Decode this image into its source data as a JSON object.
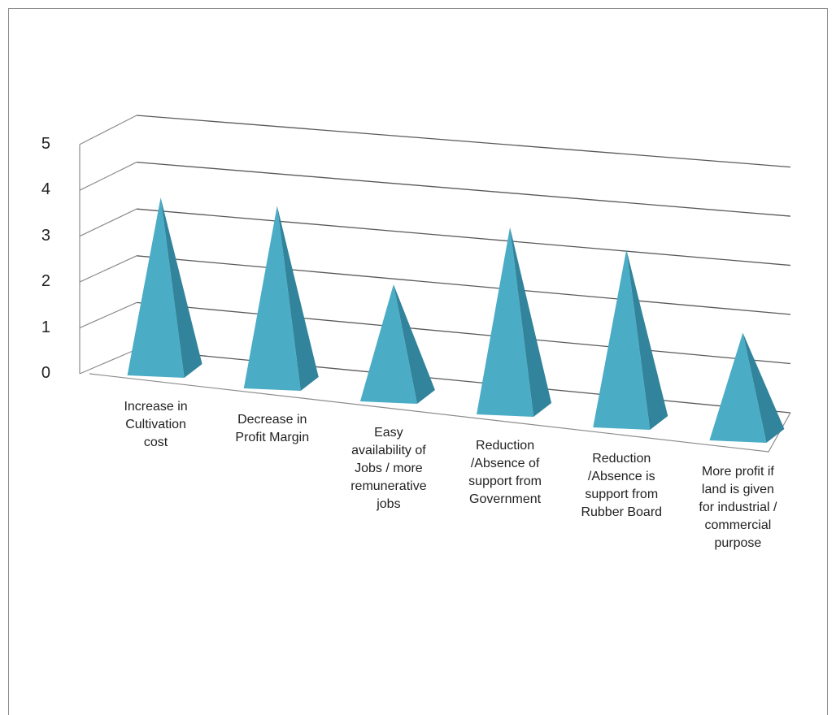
{
  "chart_data": {
    "type": "bar",
    "style": "3d-pyramid",
    "title": "",
    "xlabel": "",
    "ylabel": "",
    "ylim": [
      0,
      5
    ],
    "yticks": [
      "0",
      "1",
      "2",
      "3",
      "4",
      "5"
    ],
    "grid": true,
    "legend": "none",
    "categories": [
      "Increase in Cultivation cost",
      "Decrease in Profit Margin",
      "Easy availability of Jobs / more remunerative jobs",
      "Reduction /Absence of support from Government",
      "Reduction /Absence is support from Rubber Board",
      "More profit if land is given for industrial / commercial purpose"
    ],
    "category_lines": [
      [
        "Increase in",
        "Cultivation",
        "cost"
      ],
      [
        "Decrease in",
        "Profit Margin"
      ],
      [
        "Easy",
        "availability of",
        "Jobs / more",
        "remunerative",
        "jobs"
      ],
      [
        "Reduction",
        "/Absence of",
        "support from",
        "Government"
      ],
      [
        "Reduction",
        "/Absence is",
        "support from",
        "Rubber Board"
      ],
      [
        "More profit if",
        "land is given",
        "for industrial /",
        "commercial",
        "purpose"
      ]
    ],
    "series": [
      {
        "values": [
          3.8,
          3.9,
          2.5,
          4.0,
          3.8,
          2.3
        ]
      }
    ],
    "colors": {
      "front": "#4bacc6",
      "side": "#31849b",
      "grid": "#595959",
      "frame": "#8c8c8c"
    }
  }
}
